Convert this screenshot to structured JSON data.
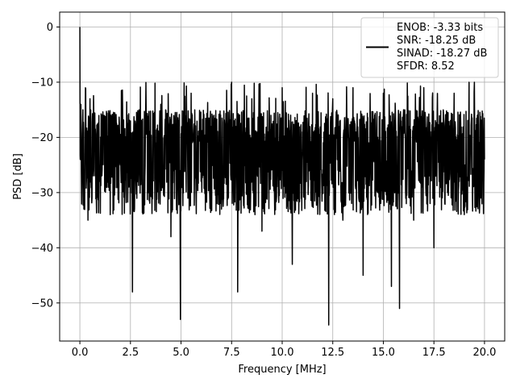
{
  "chart_data": {
    "type": "line",
    "title": "",
    "xlabel": "Frequency [MHz]",
    "ylabel": "PSD [dB]",
    "xlim": [
      -0.999,
      20.999
    ],
    "ylim": [
      -56.9,
      2.7
    ],
    "xticks": [
      0.0,
      2.5,
      5.0,
      7.5,
      10.0,
      12.5,
      15.0,
      17.5,
      20.0
    ],
    "xtick_labels": [
      "0.0",
      "2.5",
      "5.0",
      "7.5",
      "10.0",
      "12.5",
      "15.0",
      "17.5",
      "20.0"
    ],
    "yticks": [
      0,
      -10,
      -20,
      -30,
      -40,
      -50
    ],
    "ytick_labels": [
      "0",
      "−10",
      "−20",
      "−30",
      "−40",
      "−50"
    ],
    "grid": true,
    "legend_position": "top-right",
    "series": [
      {
        "name": "ENOB: -3.33 bits\nSNR: -18.25 dB\nSINAD: -18.27 dB\nSFDR: 8.52",
        "legend_lines": [
          "ENOB: -3.33 bits",
          "SNR: -18.25 dB",
          "SINAD: -18.27 dB",
          "SFDR: 8.52"
        ],
        "color": "#000000",
        "x": [
          0.0,
          0.02,
          0.05,
          0.1,
          0.15,
          0.2,
          0.3,
          0.4,
          0.5,
          0.6,
          0.8,
          1.0,
          1.2,
          1.5,
          1.75,
          2.0,
          2.5,
          2.6,
          3.0,
          3.5,
          4.0,
          4.5,
          4.97,
          5.5,
          6.0,
          6.5,
          7.0,
          7.5,
          7.8,
          8.0,
          8.5,
          9.0,
          9.5,
          10.0,
          10.5,
          11.0,
          11.5,
          12.0,
          12.3,
          12.5,
          13.0,
          13.5,
          14.0,
          14.5,
          15.0,
          15.4,
          15.8,
          16.0,
          16.5,
          17.0,
          17.5,
          18.0,
          18.5,
          19.0,
          19.5,
          20.0
        ],
        "y": [
          0.0,
          -24,
          -14,
          -28,
          -15,
          -33,
          -20,
          -35,
          -13,
          -31,
          -22,
          -27,
          -16,
          -34,
          -20,
          -25,
          -17,
          -48,
          -21,
          -26,
          -14,
          -38,
          -53,
          -12,
          -25,
          -18,
          -33,
          -10,
          -48,
          -22,
          -13,
          -37,
          -20,
          -11,
          -43,
          -22,
          -12,
          -30,
          -54,
          -13,
          -35,
          -11,
          -45,
          -19,
          -12,
          -47,
          -51,
          -15,
          -35,
          -11,
          -40,
          -18,
          -12,
          -34,
          -10,
          -24
        ]
      }
    ],
    "noise_envelope": {
      "upper_db": -15,
      "lower_db": -34,
      "peak_db": -10,
      "deep_nulls_db": [
        -49,
        -49,
        -53,
        -48,
        -54,
        -48,
        -51,
        -43
      ]
    }
  }
}
